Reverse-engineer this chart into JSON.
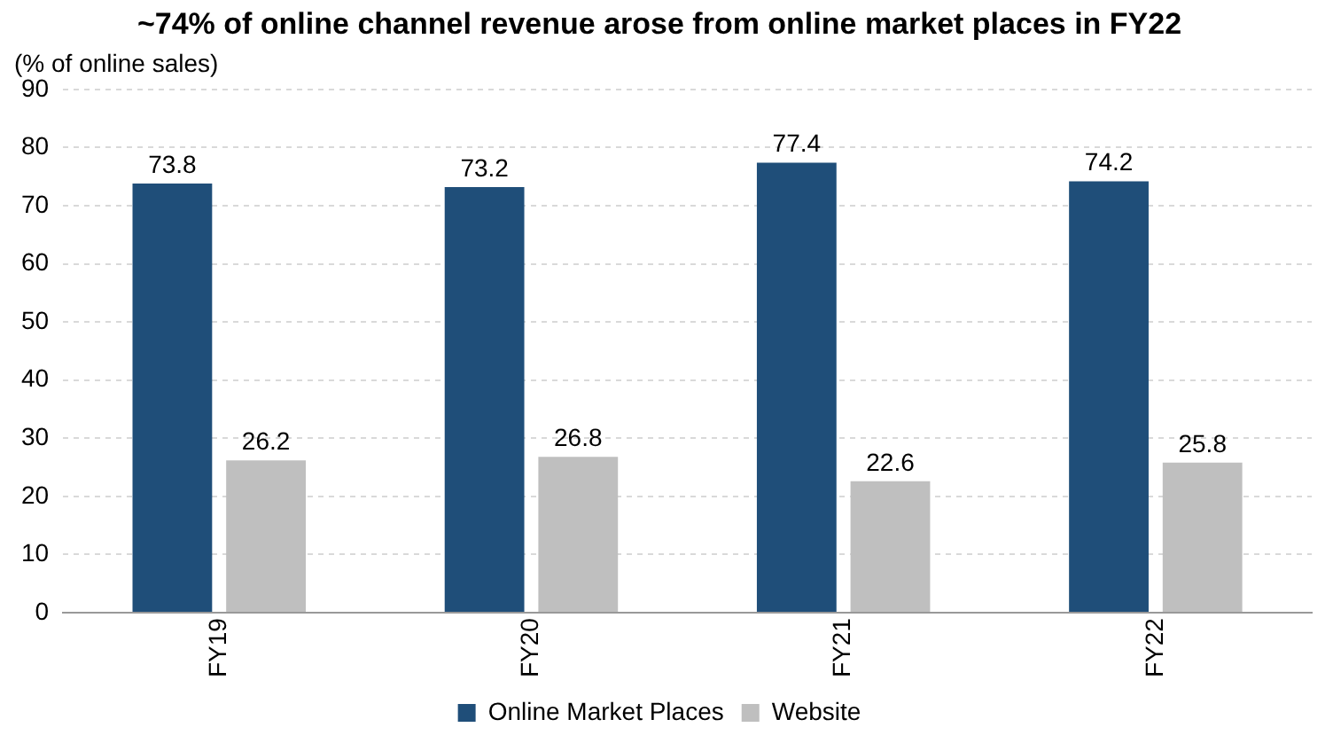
{
  "chart_data": {
    "type": "bar",
    "title": "~74% of online channel revenue arose from online market places in FY22",
    "ylabel": "(% of online sales)",
    "categories": [
      "FY19",
      "FY20",
      "FY21",
      "FY22"
    ],
    "series": [
      {
        "name": "Online Market Places",
        "color": "#1f4e79",
        "values": [
          73.8,
          73.2,
          77.4,
          74.2
        ]
      },
      {
        "name": "Website",
        "color": "#bfbfbf",
        "values": [
          26.2,
          26.8,
          22.6,
          25.8
        ]
      }
    ],
    "ylim": [
      0,
      90
    ],
    "yticks": [
      0,
      10,
      20,
      30,
      40,
      50,
      60,
      70,
      80,
      90
    ],
    "grid": "y",
    "legend": "bottom",
    "data_labels": true
  }
}
